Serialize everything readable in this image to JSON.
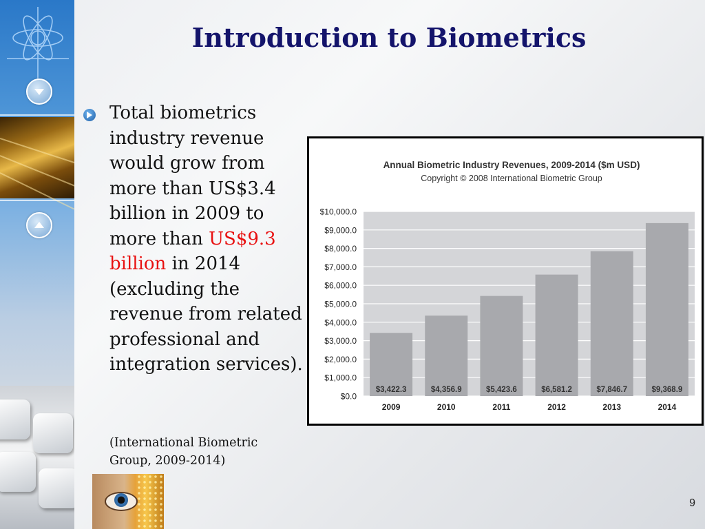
{
  "slide": {
    "title": "Introduction to Biometrics",
    "page_number": "9"
  },
  "bullet": {
    "text_before": "Total biometrics industry revenue would grow from more than US$3.4 billion in 2009 to more than ",
    "highlight": "US$9.3 billion",
    "text_after": " in 2014 (excluding the revenue from related professional and integration services).",
    "citation": "(International Biometric Group, 2009-2014)"
  },
  "colors": {
    "title": "#14146b",
    "highlight": "#e81010",
    "bar_fill": "#a8a9ad",
    "plot_background": "#d4d5d8",
    "gridline": "#ffffff"
  },
  "icons": [
    "atom-star-icon",
    "chevron-down-icon",
    "chevron-up-icon",
    "bullet-arrow-icon",
    "eye-thumbnail"
  ],
  "chart_data": {
    "type": "bar",
    "title": "Annual Biometric Industry Revenues, 2009-2014 ($m USD)",
    "subtitle": "Copyright © 2008 International Biometric Group",
    "categories": [
      "2009",
      "2010",
      "2011",
      "2012",
      "2013",
      "2014"
    ],
    "values": [
      3422.3,
      4356.9,
      5423.6,
      6581.2,
      7846.7,
      9368.9
    ],
    "data_labels": [
      "$3,422.3",
      "$4,356.9",
      "$5,423.6",
      "$6,581.2",
      "$7,846.7",
      "$9,368.9"
    ],
    "y_ticks": [
      "$0.0",
      "$1,000.0",
      "$2,000.0",
      "$3,000.0",
      "$4,000.0",
      "$5,000.0",
      "$6,000.0",
      "$7,000.0",
      "$8,000.0",
      "$9,000.0",
      "$10,000.0"
    ],
    "ylim": [
      0,
      10000
    ],
    "grid": true,
    "legend": "none"
  }
}
